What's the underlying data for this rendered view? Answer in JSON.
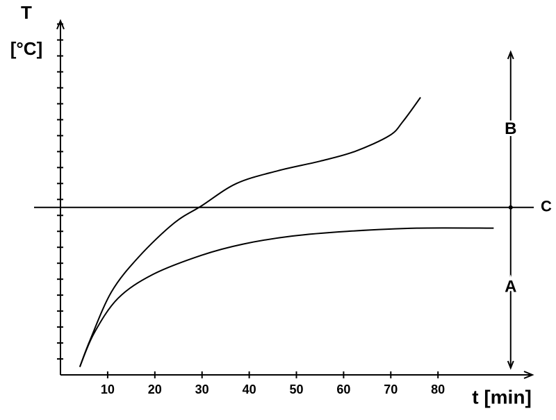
{
  "chart_data": {
    "type": "line",
    "y_label": [
      "T",
      "[°C]"
    ],
    "x_label": "t [min]",
    "xlim": [
      0,
      100
    ],
    "ylim": [
      0,
      22.2
    ],
    "xticks": [
      10,
      20,
      30,
      40,
      50,
      60,
      70,
      80
    ],
    "color": "#000000",
    "series": [
      {
        "x": [
          4.1,
          6.3,
          10.8,
          16.6,
          24,
          29.9,
          37.3,
          46.1,
          55,
          62.3,
          69.7,
          72.6,
          76.3
        ],
        "values": [
          0.5,
          2.2,
          5.2,
          7.4,
          9.5,
          10.6,
          12.0,
          12.8,
          13.4,
          14.0,
          15.0,
          15.9,
          17.4
        ]
      },
      {
        "x": [
          4.1,
          7.1,
          12.2,
          19.6,
          29.9,
          38.7,
          49,
          60.8,
          75.5,
          91.8
        ],
        "values": [
          0.5,
          2.6,
          4.8,
          6.3,
          7.5,
          8.2,
          8.7,
          9.0,
          9.2,
          9.2
        ]
      }
    ],
    "reference_line": {
      "label": "C",
      "value": 10.5
    },
    "range_marker": {
      "x": 95.4,
      "upper_label": "B",
      "lower_label": "A"
    }
  }
}
